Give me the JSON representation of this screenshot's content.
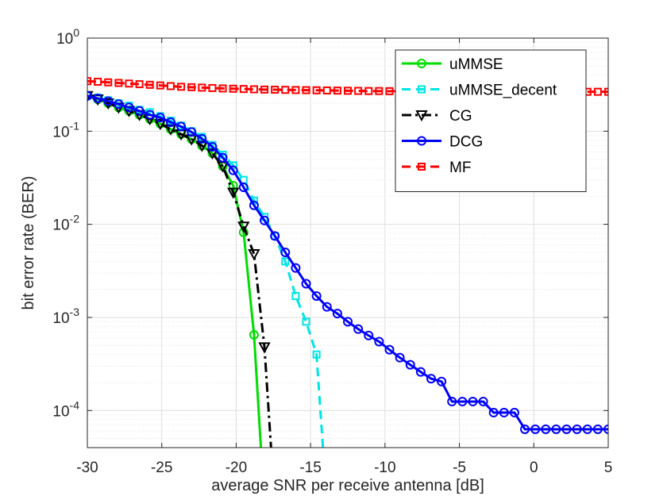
{
  "chart_data": {
    "type": "line",
    "xlabel": "average SNR per receive antenna [dB]",
    "ylabel": "bit error rate (BER)",
    "xlim": [
      -30,
      5
    ],
    "ylim": [
      4e-05,
      1
    ],
    "yscale": "log",
    "grid": true,
    "minor_grid": true,
    "legend_position": "top-right",
    "x_ticks": [
      -30,
      -25,
      -20,
      -15,
      -10,
      -5,
      0,
      5
    ],
    "x_tick_labels": [
      "-30",
      "-25",
      "-20",
      "-15",
      "-10",
      "-5",
      "0",
      "5"
    ],
    "y_ticks": [
      0.0001,
      0.001,
      0.01,
      0.1,
      1
    ],
    "y_tick_labels": [
      {
        "base": "10",
        "exp": "-4"
      },
      {
        "base": "10",
        "exp": "-3"
      },
      {
        "base": "10",
        "exp": "-2"
      },
      {
        "base": "10",
        "exp": "-1"
      },
      {
        "base": "10",
        "exp": "0"
      }
    ],
    "series": [
      {
        "name": "uMMSE",
        "color": "#00dd00",
        "dash": "solid",
        "marker": "circle",
        "x": [
          -30,
          -29.3,
          -28.6,
          -27.9,
          -27.2,
          -26.5,
          -25.8,
          -25.1,
          -24.4,
          -23.7,
          -23,
          -22.3,
          -21.6,
          -20.9,
          -20.2,
          -19.5,
          -18.8,
          -18.1
        ],
        "y": [
          0.24,
          0.22,
          0.2,
          0.18,
          0.165,
          0.15,
          0.135,
          0.12,
          0.105,
          0.093,
          0.082,
          0.07,
          0.058,
          0.042,
          0.026,
          0.0082,
          0.00065,
          9.5e-06
        ]
      },
      {
        "name": "uMMSE_decent",
        "color": "#00e5e5",
        "dash": "dashed",
        "marker": "square",
        "x": [
          -30,
          -29.3,
          -28.6,
          -27.9,
          -27.2,
          -26.5,
          -25.8,
          -25.1,
          -24.4,
          -23.7,
          -23,
          -22.3,
          -21.6,
          -20.9,
          -20.2,
          -19.5,
          -18.8,
          -18.1,
          -17.4,
          -16.7,
          -16,
          -15.3,
          -14.6,
          -13.9
        ],
        "y": [
          0.24,
          0.23,
          0.215,
          0.2,
          0.188,
          0.17,
          0.16,
          0.145,
          0.13,
          0.115,
          0.1,
          0.087,
          0.071,
          0.056,
          0.043,
          0.03,
          0.018,
          0.012,
          0.0075,
          0.004,
          0.0017,
          0.0009,
          0.0004,
          9.5e-06
        ]
      },
      {
        "name": "CG",
        "color": "#000000",
        "dash": "dashdot",
        "marker": "triangle-down",
        "x": [
          -30,
          -29.3,
          -28.6,
          -27.9,
          -27.2,
          -26.5,
          -25.8,
          -25.1,
          -24.4,
          -23.7,
          -23,
          -22.3,
          -21.6,
          -20.9,
          -20.2,
          -19.5,
          -18.8,
          -18.1,
          -17.4
        ],
        "y": [
          0.24,
          0.22,
          0.2,
          0.18,
          0.165,
          0.15,
          0.135,
          0.12,
          0.105,
          0.093,
          0.082,
          0.07,
          0.058,
          0.042,
          0.022,
          0.0095,
          0.0048,
          0.00048,
          9.5e-06
        ]
      },
      {
        "name": "DCG",
        "color": "#0000ff",
        "dash": "solid",
        "marker": "circle",
        "x": [
          -30,
          -29.3,
          -28.6,
          -27.9,
          -27.2,
          -26.5,
          -25.8,
          -25.1,
          -24.4,
          -23.7,
          -23,
          -22.3,
          -21.6,
          -20.9,
          -20.2,
          -19.5,
          -18.8,
          -18.1,
          -17.4,
          -16.7,
          -16,
          -15.3,
          -14.6,
          -13.9,
          -13.2,
          -12.5,
          -11.8,
          -11.1,
          -10.4,
          -9.7,
          -9,
          -8.3,
          -7.6,
          -6.9,
          -6.2,
          -5.5,
          -4.8,
          -4.1,
          -3.4,
          -2.7,
          -2,
          -1.3,
          -0.6,
          0.1,
          0.8,
          1.5,
          2.2,
          2.9,
          3.6,
          4.3,
          5
        ],
        "y": [
          0.24,
          0.225,
          0.21,
          0.195,
          0.18,
          0.165,
          0.15,
          0.14,
          0.125,
          0.112,
          0.098,
          0.083,
          0.068,
          0.052,
          0.038,
          0.025,
          0.016,
          0.011,
          0.0075,
          0.005,
          0.0034,
          0.0023,
          0.0017,
          0.0013,
          0.0011,
          0.0009,
          0.00075,
          0.00064,
          0.00055,
          0.00045,
          0.00037,
          0.00031,
          0.00026,
          0.00022,
          0.000205,
          0.000125,
          0.000125,
          0.000125,
          0.000125,
          9.5e-05,
          9.5e-05,
          9.5e-05,
          6.3e-05,
          6.3e-05,
          6.3e-05,
          6.3e-05,
          6.3e-05,
          6.3e-05,
          6.3e-05,
          6.3e-05,
          6.3e-05
        ]
      },
      {
        "name": "MF",
        "color": "#ff0000",
        "dash": "dashed",
        "marker": "square",
        "x": [
          -30,
          -29.3,
          -28.6,
          -27.9,
          -27.2,
          -26.5,
          -25.8,
          -25.1,
          -24.4,
          -23.7,
          -23,
          -22.3,
          -21.6,
          -20.9,
          -20.2,
          -19.5,
          -18.8,
          -18.1,
          -17.4,
          -16.7,
          -16,
          -15.3,
          -14.6,
          -13.9,
          -13.2,
          -12.5,
          -11.8,
          -11.1,
          -10.4,
          -9.7,
          -9,
          -8.3,
          -7.6,
          -6.9,
          -6.2,
          -5.5,
          -4.8,
          -4.1,
          -3.4,
          -2.7,
          -2,
          -1.3,
          -0.6,
          0.1,
          0.8,
          1.5,
          2.2,
          2.9,
          3.6,
          4.3,
          5
        ],
        "y": [
          0.345,
          0.34,
          0.335,
          0.33,
          0.325,
          0.32,
          0.315,
          0.31,
          0.305,
          0.3,
          0.297,
          0.294,
          0.291,
          0.288,
          0.286,
          0.284,
          0.282,
          0.28,
          0.279,
          0.278,
          0.277,
          0.276,
          0.275,
          0.274,
          0.273,
          0.272,
          0.271,
          0.27,
          0.27,
          0.269,
          0.269,
          0.268,
          0.268,
          0.268,
          0.267,
          0.267,
          0.267,
          0.266,
          0.266,
          0.266,
          0.266,
          0.265,
          0.265,
          0.265,
          0.265,
          0.265,
          0.265,
          0.265,
          0.265,
          0.265,
          0.265
        ]
      }
    ]
  }
}
